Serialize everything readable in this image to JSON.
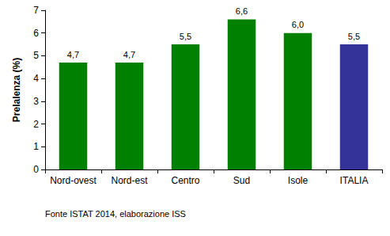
{
  "chart_data": {
    "type": "bar",
    "categories": [
      "Nord-ovest",
      "Nord-est",
      "Centro",
      "Sud",
      "Isole",
      "ITALIA"
    ],
    "values": [
      4.7,
      4.7,
      5.5,
      6.6,
      6.0,
      5.5
    ],
    "value_labels": [
      "4,7",
      "4,7",
      "5,5",
      "6,6",
      "6,0",
      "5,5"
    ],
    "colors": [
      "#008000",
      "#008000",
      "#008000",
      "#008000",
      "#008000",
      "#333399"
    ],
    "ylabel": "Prelalenza (%)",
    "ylim": [
      0,
      7
    ],
    "yticks": [
      0,
      1,
      2,
      3,
      4,
      5,
      6,
      7
    ],
    "grid": false,
    "data_labels": true,
    "annotation": "Fonte ISTAT 2014, elaborazione ISS"
  }
}
